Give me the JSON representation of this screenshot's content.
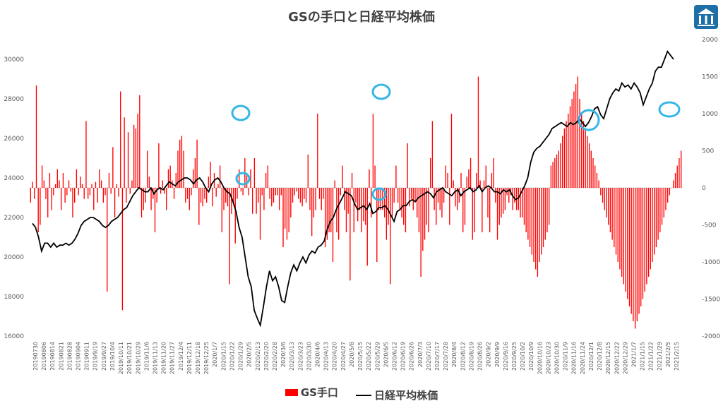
{
  "colors": {
    "bars": "#ff0000",
    "line": "#000000",
    "circles": "#35b6e6",
    "logo": "#1e6fa8"
  },
  "icons": {
    "logo": "building-logo-icon"
  },
  "chart_data": {
    "type": "bar+line",
    "title": "GSの手口と日経平均株価",
    "legend_position": "bottom",
    "grid": false,
    "y_left": {
      "range": [
        16000,
        31000
      ],
      "ticks": [
        "16000",
        "18000",
        "20000",
        "22000",
        "24000",
        "26000",
        "28000",
        "30000"
      ]
    },
    "y_right": {
      "range": [
        -2000,
        2000
      ],
      "ticks": [
        "-2000",
        "-1500",
        "-1000",
        "-500",
        "0",
        "500",
        "1000",
        "1500",
        "2000"
      ]
    },
    "x_ticks": [
      "20190730",
      "20190806",
      "20190814",
      "20190821",
      "20190828",
      "20190904",
      "20190911",
      "2019/9/19",
      "2019/9/27",
      "2019/10/4",
      "2019/10/11",
      "2019/10/21",
      "2019/10/29",
      "2019/11/6",
      "2019/11/13",
      "2019/11/20",
      "2019/11/27",
      "2019/12/4",
      "2019/12/11",
      "2019/12/18",
      "2019/12/25",
      "2020/1/7",
      "2020/1/15",
      "2020/1/22",
      "2020/1/29",
      "2020/2/5",
      "2020/2/13",
      "2020/2/20",
      "2020/2/28",
      "2020/3/6",
      "2020/3/13",
      "2020/3/23",
      "2020/3/30",
      "2020/4/6",
      "2020/4/13",
      "2020/4/20",
      "2020/4/27",
      "2020/5/8",
      "2020/5/15",
      "2020/5/22",
      "2020/5/29",
      "2020/6/5",
      "2020/6/12",
      "2020/6/19",
      "2020/6/26",
      "2020/7/3",
      "2020/7/10",
      "2020/7/17",
      "2020/7/28",
      "2020/8/4",
      "2020/8/12",
      "2020/8/19",
      "2020/8/26",
      "2020/9/2",
      "2020/9/9",
      "2020/9/16",
      "2020/9/25",
      "2020/10/2",
      "2020/10/9",
      "2020/10/16",
      "2020/10/23",
      "2020/10/30",
      "2020/11/9",
      "2020/11/16",
      "2020/11/24",
      "2020/12/1",
      "2020/12/8",
      "2020/12/15",
      "2020/12/22",
      "2020/12/29",
      "2021/1/7",
      "2021/1/15",
      "2021/1/22",
      "2021/1/29",
      "2021/2/5",
      "2021/2/15"
    ],
    "series": [
      {
        "name": "GS手口",
        "type": "bar",
        "axis": "right",
        "values": [
          -200,
          80,
          -150,
          1380,
          -600,
          -500,
          300,
          100,
          -150,
          -400,
          200,
          -300,
          -100,
          50,
          250,
          100,
          -300,
          200,
          -200,
          -100,
          100,
          -50,
          -400,
          -200,
          250,
          -100,
          150,
          50,
          -150,
          900,
          -150,
          -100,
          50,
          -300,
          80,
          -200,
          250,
          100,
          -200,
          -100,
          -1400,
          200,
          -80,
          550,
          -400,
          50,
          -120,
          1300,
          -1650,
          950,
          -200,
          750,
          -80,
          100,
          850,
          800,
          1000,
          1250,
          -400,
          -300,
          -200,
          500,
          150,
          -300,
          -150,
          -600,
          -200,
          600,
          -80,
          100,
          -80,
          -300,
          250,
          300,
          100,
          -150,
          200,
          500,
          650,
          700,
          500,
          -200,
          -150,
          -300,
          -100,
          250,
          400,
          650,
          -500,
          -200,
          -250,
          -150,
          -200,
          150,
          350,
          -250,
          200,
          -120,
          50,
          300,
          -600,
          -300,
          -200,
          -250,
          -1300,
          -350,
          -200,
          -750,
          -150,
          250,
          -50,
          -100,
          400,
          200,
          -100,
          250,
          -350,
          400,
          -350,
          -200,
          -700,
          -100,
          -300,
          200,
          300,
          -150,
          -250,
          -200,
          -100,
          -100,
          -300,
          -100,
          -800,
          -550,
          -700,
          -600,
          -400,
          -200,
          -100,
          -50,
          -150,
          -200,
          -250,
          -150,
          -200,
          450,
          -300,
          -650,
          -400,
          -300,
          1000,
          -150,
          -300,
          -150,
          -800,
          -700,
          -600,
          -600,
          -1000,
          100,
          -600,
          -700,
          -100,
          300,
          -300,
          -600,
          -350,
          -1250,
          200,
          -600,
          -200,
          -450,
          -300,
          -600,
          -450,
          -500,
          -1050,
          250,
          -400,
          1000,
          300,
          -1000,
          -300,
          -300,
          -300,
          -400,
          -700,
          -500,
          -1300,
          -400,
          -200,
          300,
          -200,
          -300,
          -400,
          -500,
          -600,
          600,
          -250,
          -150,
          -300,
          -200,
          -400,
          -600,
          -1200,
          -850,
          -700,
          -500,
          -600,
          400,
          900,
          -300,
          -500,
          -200,
          -300,
          -400,
          -200,
          300,
          200,
          -500,
          1000,
          100,
          -250,
          -300,
          -200,
          200,
          -600,
          -500,
          150,
          250,
          400,
          -700,
          -600,
          200,
          1500,
          100,
          -600,
          100,
          300,
          -400,
          -600,
          200,
          400,
          -200,
          -700,
          -500,
          -400,
          -350,
          -300,
          -100,
          -200,
          -100,
          -300,
          -200,
          -300,
          -300,
          -400,
          -400,
          -500,
          -600,
          -700,
          -800,
          -900,
          -1000,
          -1100,
          -1200,
          -1000,
          -900,
          -800,
          -700,
          -600,
          -500,
          300,
          350,
          400,
          450,
          500,
          600,
          700,
          800,
          900,
          1000,
          1100,
          1200,
          1300,
          1400,
          1500,
          1200,
          1000,
          900,
          800,
          700,
          600,
          500,
          400,
          300,
          200,
          100,
          -100,
          -200,
          -300,
          -400,
          -500,
          -600,
          -700,
          -800,
          -900,
          -1000,
          -1100,
          -1200,
          -1300,
          -1400,
          -1500,
          -1600,
          -1700,
          -1800,
          -1900,
          -1800,
          -1700,
          -1600,
          -1500,
          -1400,
          -1300,
          -1200,
          -1100,
          -1000,
          -900,
          -800,
          -700,
          -600,
          -500,
          -400,
          -300,
          -200,
          -100,
          0,
          100,
          200,
          300,
          400,
          500
        ]
      },
      {
        "name": "日経平均株価",
        "type": "line",
        "axis": "left",
        "values": [
          21700,
          21500,
          21000,
          20300,
          20700,
          20700,
          20500,
          20700,
          20500,
          20600,
          20600,
          20700,
          20600,
          20700,
          20900,
          21200,
          21600,
          21800,
          21900,
          22000,
          22000,
          21900,
          21800,
          21600,
          21500,
          21600,
          21800,
          21900,
          22000,
          22200,
          22400,
          22500,
          22800,
          23100,
          23300,
          23500,
          23400,
          23300,
          23300,
          23500,
          23200,
          23400,
          23500,
          23400,
          23600,
          23800,
          23700,
          23600,
          23800,
          23900,
          24000,
          24000,
          23900,
          23700,
          23900,
          24000,
          23800,
          23500,
          23300,
          23700,
          23900,
          24000,
          23800,
          23500,
          23300,
          23200,
          22800,
          22300,
          21500,
          21000,
          20000,
          19000,
          18500,
          17300,
          16900,
          16550,
          17500,
          18500,
          19300,
          18800,
          19000,
          18500,
          17800,
          17700,
          18500,
          19200,
          19600,
          19300,
          19700,
          20000,
          19700,
          20100,
          20300,
          20200,
          20500,
          20600,
          20800,
          21400,
          21800,
          22000,
          22400,
          22700,
          23000,
          23300,
          23200,
          23100,
          22700,
          22400,
          22500,
          22600,
          22400,
          22700,
          22200,
          22300,
          22500,
          22500,
          22600,
          22400,
          22100,
          21800,
          22300,
          22400,
          22600,
          22600,
          22800,
          22900,
          22800,
          23000,
          23100,
          23200,
          23300,
          23200,
          23000,
          23300,
          23400,
          23500,
          23300,
          23200,
          23100,
          23300,
          23400,
          23100,
          23300,
          23400,
          23500,
          23300,
          23400,
          23600,
          23300,
          23500,
          23600,
          23500,
          23300,
          23300,
          23200,
          23400,
          23300,
          23400,
          23100,
          22900,
          23000,
          23300,
          23600,
          24000,
          24800,
          25300,
          25500,
          25600,
          25800,
          26000,
          26200,
          26500,
          26600,
          26700,
          26800,
          26700,
          26600,
          26800,
          26700,
          26800,
          27000,
          26800,
          26600,
          26800,
          27100,
          27500,
          27600,
          27200,
          27000,
          27500,
          28000,
          28300,
          28500,
          28400,
          28800,
          28600,
          28700,
          28500,
          28800,
          28600,
          28300,
          27700,
          28100,
          28500,
          28800,
          29400,
          29600,
          29600,
          30000,
          30400,
          30200,
          30000
        ],
        "__note": ""
      }
    ]
  },
  "legend": {
    "bar_label": "GS手口",
    "line_label": "日経平均株価"
  }
}
